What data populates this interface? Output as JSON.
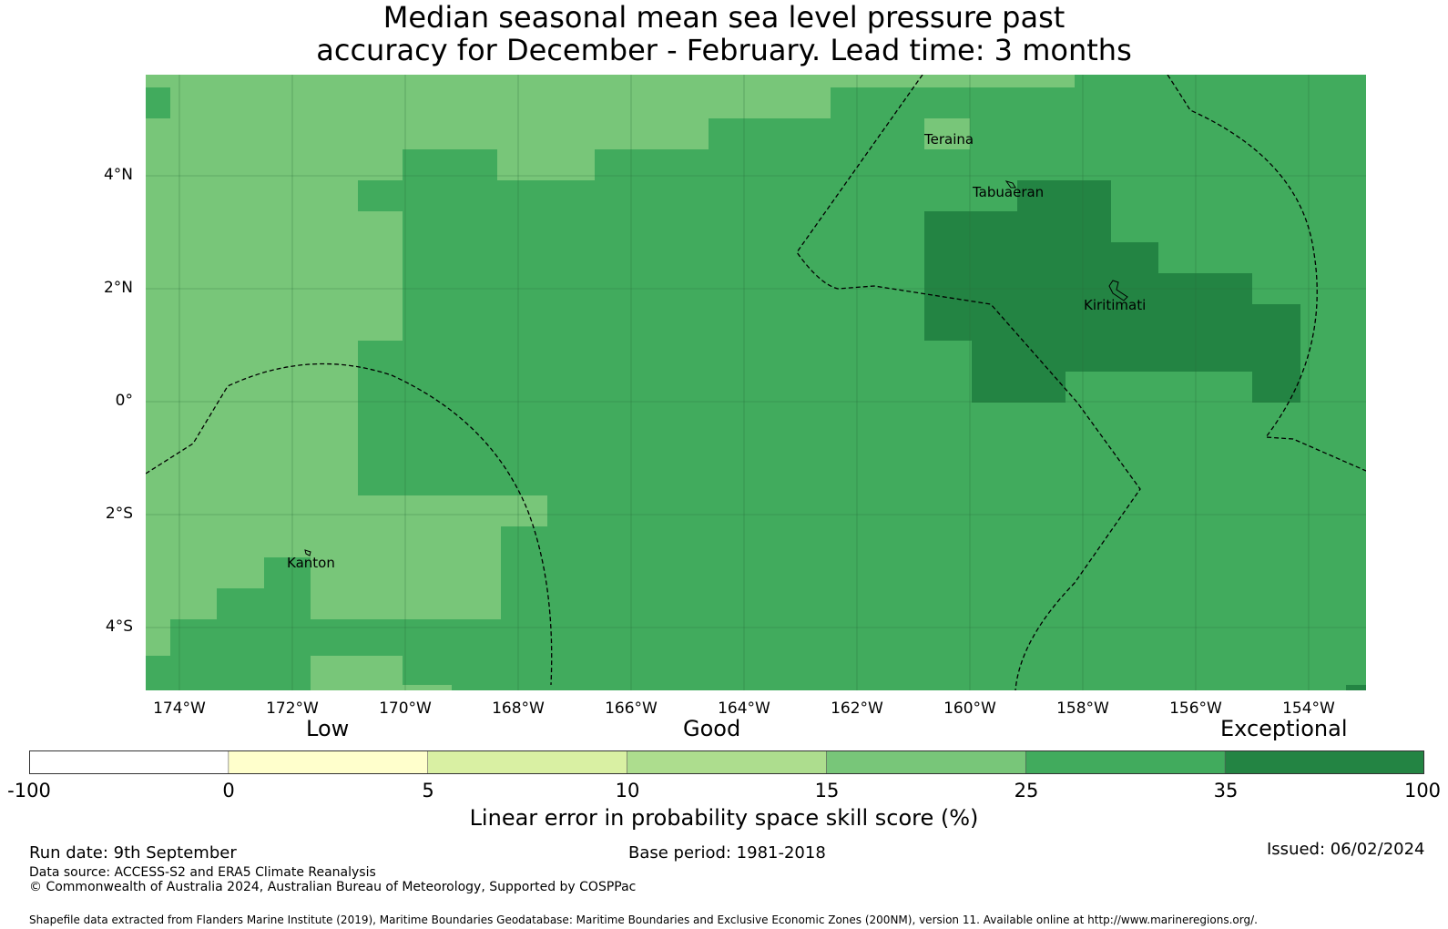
{
  "title": {
    "line1": "Median seasonal mean sea level pressure past",
    "line2": "accuracy for December - February. Lead time: 3 months"
  },
  "map": {
    "y_ticks": [
      "4°N",
      "2°N",
      "0°",
      "2°S",
      "4°S"
    ],
    "x_ticks": [
      "174°W",
      "172°W",
      "170°W",
      "168°W",
      "166°W",
      "164°W",
      "162°W",
      "160°W",
      "158°W",
      "156°W",
      "154°W"
    ],
    "places": [
      "Teraina",
      "Tabuaeran",
      "Kiritimati",
      "Kanton"
    ]
  },
  "colorbar": {
    "category_labels": [
      "Low",
      "Good",
      "Exceptional"
    ],
    "ticks": [
      "-100",
      "0",
      "5",
      "10",
      "15",
      "25",
      "35",
      "100"
    ],
    "colors": [
      "#ffffff",
      "#ffffcc",
      "#d9f0a3",
      "#addd8e",
      "#78c679",
      "#41ab5d",
      "#238443"
    ],
    "label": "Linear error in probability space skill score (%)"
  },
  "footer": {
    "run_date": "Run date: 9th September",
    "base_period": "Base period: 1981-2018",
    "issued": "Issued: 06/02/2024",
    "data_source": "Data source: ACCESS-S2 and ERA5 Climate Reanalysis",
    "copyright": "© Commonwealth of Australia 2024, Australian Bureau of Meteorology, Supported by COSPPac",
    "shapefile": "Shapefile data extracted from Flanders Marine Institute (2019), Maritime Boundaries Geodatabase: Maritime Boundaries and Exclusive Economic Zones (200NM), version 11. Available online at http://www.marineregions.org/."
  }
}
